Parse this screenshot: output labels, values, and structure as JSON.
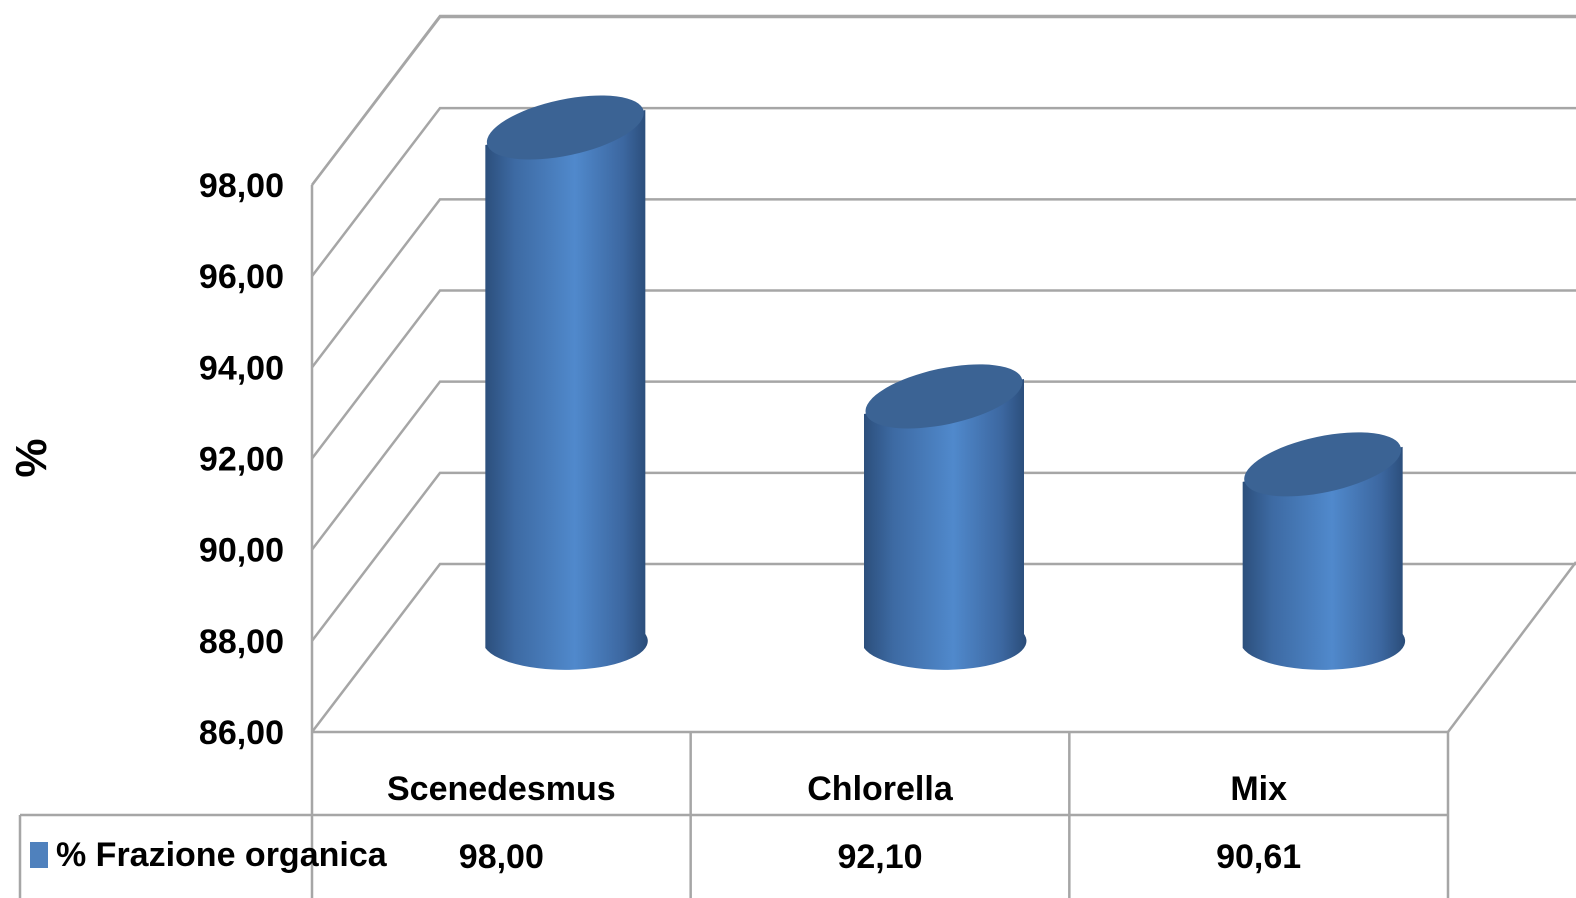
{
  "chart_data": {
    "type": "bar",
    "style": "3d-cylinder",
    "categories": [
      "Scenedesmus",
      "Chlorella",
      "Mix"
    ],
    "series": [
      {
        "name": "% Frazione organica",
        "values": [
          98.0,
          92.1,
          90.61
        ],
        "value_labels": [
          "98,00",
          "92,10",
          "90,61"
        ],
        "color": "#4f81bd"
      }
    ],
    "ylabel": "%",
    "ylim": [
      86,
      98
    ],
    "ytick_labels": [
      "86,00",
      "88,00",
      "90,00",
      "92,00",
      "94,00",
      "96,00",
      "98,00"
    ],
    "grid": true,
    "legend": "data-table-bottom"
  }
}
